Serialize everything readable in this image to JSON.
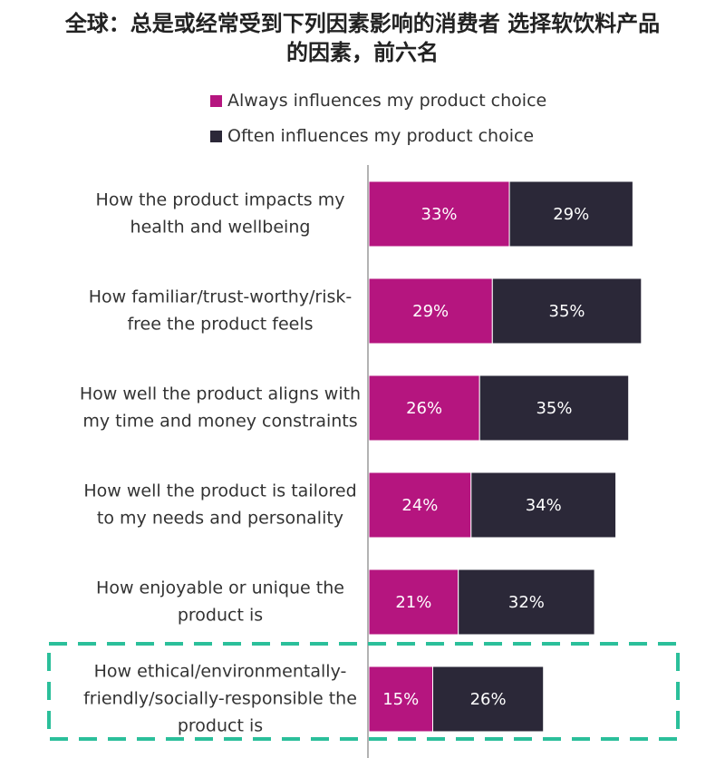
{
  "title_line1": "全球：总是或经常受到下列因素影响的消费者 选择软饮料产品",
  "title_line2": "的因素，前六名",
  "chart_data": {
    "type": "bar",
    "orientation": "horizontal",
    "stacked": true,
    "categories": [
      [
        "How the product impacts my",
        "health and wellbeing"
      ],
      [
        "How familiar/trust-worthy/risk-",
        "free the product feels"
      ],
      [
        "How well the product aligns with",
        "my time and money constraints"
      ],
      [
        "How well the product is tailored",
        "to my needs and personality"
      ],
      [
        "How enjoyable or unique the",
        "product is"
      ],
      [
        "How ethical/environmentally-",
        "friendly/socially-responsible the",
        "product is"
      ]
    ],
    "series": [
      {
        "name": "Always influences my product choice",
        "color": "#b5157f",
        "values": [
          33,
          29,
          26,
          24,
          21,
          15
        ],
        "labels": [
          "33%",
          "29%",
          "26%",
          "24%",
          "21%",
          "15%"
        ]
      },
      {
        "name": "Often influences my product choice",
        "color": "#2b2838",
        "values": [
          29,
          35,
          35,
          34,
          32,
          26
        ],
        "labels": [
          "29%",
          "35%",
          "35%",
          "34%",
          "32%",
          "26%"
        ]
      }
    ],
    "legend_position": "top",
    "highlighted_category_index": 5,
    "highlight_color": "#2bbf9a",
    "grid": false
  }
}
